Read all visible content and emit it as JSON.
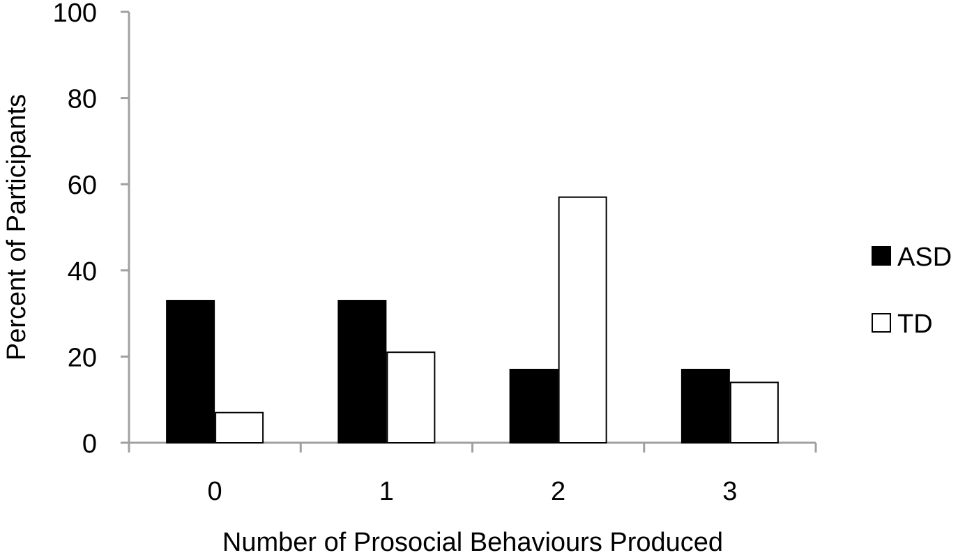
{
  "chart_data": {
    "type": "bar",
    "title": "",
    "xlabel": "Number of Prosocial Behaviours Produced",
    "ylabel": "Percent of Participants",
    "categories": [
      "0",
      "1",
      "2",
      "3"
    ],
    "ylim": [
      0,
      100
    ],
    "yticks": [
      0,
      20,
      40,
      60,
      80,
      100
    ],
    "grid": false,
    "legend_position": "right",
    "series": [
      {
        "name": "ASD",
        "values": [
          33,
          33,
          17,
          17
        ],
        "color": "#000000"
      },
      {
        "name": "TD",
        "values": [
          7,
          21,
          57,
          14
        ],
        "color": "#ffffff"
      }
    ]
  }
}
